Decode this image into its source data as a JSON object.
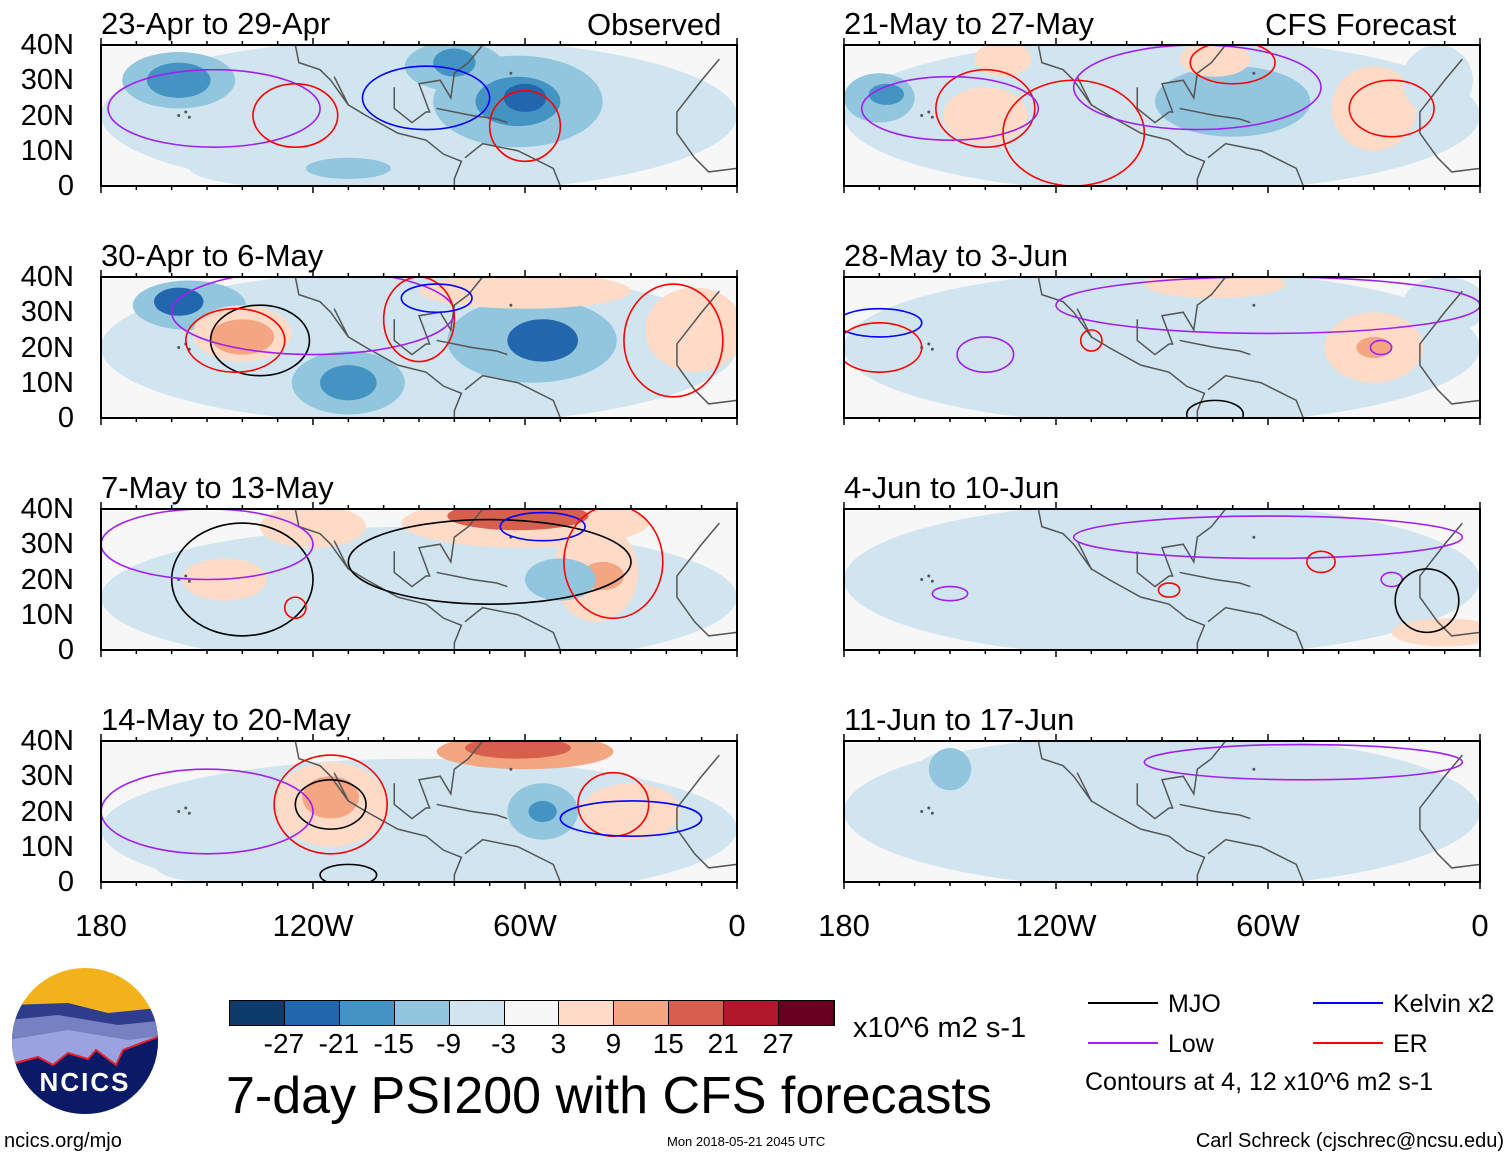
{
  "chart_data": {
    "type": "heatmap",
    "title": "7-day PSI200 with CFS forecasts",
    "column_labels": [
      "Observed",
      "CFS Forecast"
    ],
    "lat_ticks": [
      "40N",
      "30N",
      "20N",
      "10N",
      "0"
    ],
    "lon_ticks": [
      "180",
      "120W",
      "60W",
      "0"
    ],
    "xlim": [
      -180,
      0
    ],
    "ylim": [
      0,
      40
    ],
    "colorbar": {
      "levels": [
        "-27",
        "-21",
        "-15",
        "-9",
        "-3",
        "3",
        "9",
        "15",
        "21",
        "27"
      ],
      "colors": [
        "#0b3a6b",
        "#2266ad",
        "#4393c3",
        "#92c5de",
        "#d1e5f0",
        "#f7f7f7",
        "#fddbc7",
        "#f4a582",
        "#d6604d",
        "#b2182b",
        "#67001f"
      ],
      "units": "x10^6 m2 s-1"
    },
    "contour_legend": [
      {
        "label": "MJO",
        "color": "#000000"
      },
      {
        "label": "Kelvin x2",
        "color": "#0000ff"
      },
      {
        "label": "Low",
        "color": "#a020f0"
      },
      {
        "label": "ER",
        "color": "#ff0000"
      }
    ],
    "contour_note": "Contours at 4, 12 x10^6 m2 s-1",
    "panels": [
      {
        "title": "23-Apr to 29-Apr",
        "col": 0,
        "row": 0,
        "fills": [
          [
            -90,
            20,
            90,
            22,
            -3
          ],
          [
            -158,
            30,
            16,
            8,
            -9
          ],
          [
            -158,
            30,
            9,
            5,
            -15
          ],
          [
            -62,
            24,
            24,
            13,
            -9
          ],
          [
            -62,
            24,
            12,
            7,
            -15
          ],
          [
            -60,
            25,
            6,
            4,
            -21
          ],
          [
            -80,
            34,
            14,
            7,
            -9
          ],
          [
            -80,
            35,
            6,
            4,
            -15
          ],
          [
            -115,
            5,
            40,
            6,
            -6
          ],
          [
            -110,
            5,
            12,
            3,
            -12
          ],
          [
            -140,
            12,
            10,
            4,
            -6
          ]
        ],
        "contours": [
          [
            "Low",
            -148,
            22,
            30,
            11
          ],
          [
            "ER",
            -125,
            20,
            12,
            9
          ],
          [
            "ER",
            -60,
            17,
            10,
            10
          ],
          [
            "Kelvin",
            -88,
            25,
            18,
            9
          ]
        ]
      },
      {
        "title": "30-Apr to 6-May",
        "col": 0,
        "row": 1,
        "fills": [
          [
            -90,
            20,
            90,
            22,
            -3
          ],
          [
            -155,
            32,
            16,
            7,
            -9
          ],
          [
            -158,
            33,
            7,
            4,
            -21
          ],
          [
            -140,
            24,
            14,
            8,
            6
          ],
          [
            -140,
            23,
            9,
            5,
            15
          ],
          [
            -110,
            10,
            16,
            9,
            -9
          ],
          [
            -110,
            10,
            8,
            5,
            -15
          ],
          [
            -58,
            22,
            24,
            12,
            -9
          ],
          [
            -55,
            22,
            10,
            6,
            -21
          ],
          [
            -60,
            36,
            30,
            5,
            6
          ],
          [
            -12,
            25,
            14,
            12,
            6
          ]
        ],
        "contours": [
          [
            "MJO",
            -135,
            22,
            14,
            10
          ],
          [
            "ER",
            -142,
            22,
            14,
            9
          ],
          [
            "Low",
            -120,
            30,
            40,
            12
          ],
          [
            "ER",
            -90,
            28,
            10,
            12
          ],
          [
            "Kelvin",
            -85,
            34,
            10,
            4
          ],
          [
            "ER",
            -18,
            22,
            14,
            16
          ]
        ]
      },
      {
        "title": "7-May to 13-May",
        "col": 0,
        "row": 2,
        "fills": [
          [
            -90,
            15,
            90,
            20,
            -3
          ],
          [
            -60,
            36,
            35,
            7,
            9
          ],
          [
            -62,
            38,
            20,
            4,
            21
          ],
          [
            -40,
            22,
            12,
            14,
            9
          ],
          [
            -38,
            21,
            6,
            4,
            15
          ],
          [
            -120,
            35,
            15,
            6,
            6
          ],
          [
            -145,
            20,
            12,
            6,
            6
          ],
          [
            -50,
            20,
            10,
            6,
            -9
          ]
        ],
        "contours": [
          [
            "MJO",
            -140,
            20,
            20,
            16
          ],
          [
            "MJO",
            -70,
            25,
            40,
            12
          ],
          [
            "Kelvin",
            -55,
            35,
            12,
            4
          ],
          [
            "ER",
            -35,
            25,
            14,
            16
          ],
          [
            "ER",
            -125,
            12,
            3,
            3
          ],
          [
            "Low",
            -150,
            30,
            30,
            10
          ]
        ]
      },
      {
        "title": "14-May to 20-May",
        "col": 0,
        "row": 3,
        "fills": [
          [
            -90,
            15,
            90,
            20,
            -3
          ],
          [
            -60,
            37,
            25,
            5,
            15
          ],
          [
            -62,
            38,
            15,
            3,
            21
          ],
          [
            -115,
            22,
            16,
            12,
            9
          ],
          [
            -115,
            24,
            8,
            6,
            15
          ],
          [
            -55,
            20,
            10,
            8,
            -9
          ],
          [
            -55,
            20,
            4,
            3,
            -15
          ],
          [
            -30,
            20,
            14,
            8,
            9
          ],
          [
            -150,
            5,
            15,
            5,
            -6
          ]
        ],
        "contours": [
          [
            "ER",
            -115,
            22,
            16,
            14
          ],
          [
            "MJO",
            -115,
            22,
            10,
            7
          ],
          [
            "Low",
            -150,
            20,
            30,
            12
          ],
          [
            "ER",
            -35,
            22,
            10,
            9
          ],
          [
            "Kelvin",
            -30,
            18,
            20,
            5
          ],
          [
            "MJO",
            -110,
            2,
            8,
            3
          ]
        ]
      },
      {
        "title": "21-May to 27-May",
        "col": 1,
        "row": 0,
        "fills": [
          [
            -90,
            20,
            90,
            22,
            -3
          ],
          [
            -170,
            25,
            10,
            7,
            -9
          ],
          [
            -168,
            26,
            5,
            3,
            -15
          ],
          [
            -70,
            24,
            22,
            10,
            -9
          ],
          [
            -140,
            20,
            12,
            8,
            6
          ],
          [
            -135,
            36,
            8,
            5,
            6
          ],
          [
            -30,
            22,
            12,
            12,
            9
          ],
          [
            -75,
            36,
            10,
            5,
            9
          ],
          [
            -12,
            30,
            10,
            10,
            -6
          ]
        ],
        "contours": [
          [
            "ER",
            -140,
            22,
            14,
            11
          ],
          [
            "Low",
            -150,
            22,
            25,
            9
          ],
          [
            "ER",
            -115,
            15,
            20,
            15
          ],
          [
            "Low",
            -80,
            28,
            35,
            12
          ],
          [
            "ER",
            -25,
            22,
            12,
            8
          ],
          [
            "ER",
            -70,
            35,
            12,
            6
          ]
        ]
      },
      {
        "title": "28-May to 3-Jun",
        "col": 1,
        "row": 1,
        "fills": [
          [
            -90,
            20,
            90,
            22,
            -3
          ],
          [
            -30,
            20,
            14,
            10,
            6
          ],
          [
            -30,
            20,
            5,
            3,
            15
          ],
          [
            -60,
            30,
            10,
            6,
            -6
          ],
          [
            -10,
            32,
            12,
            8,
            -6
          ],
          [
            -75,
            38,
            20,
            4,
            6
          ]
        ],
        "contours": [
          [
            "Kelvin",
            -170,
            27,
            12,
            4
          ],
          [
            "ER",
            -170,
            20,
            12,
            7
          ],
          [
            "Low",
            -140,
            18,
            8,
            5
          ],
          [
            "ER",
            -110,
            22,
            3,
            3
          ],
          [
            "Low",
            -60,
            32,
            60,
            8
          ],
          [
            "Low",
            -28,
            20,
            3,
            2
          ],
          [
            "MJO",
            -75,
            1,
            8,
            4
          ]
        ]
      },
      {
        "title": "4-Jun to 10-Jun",
        "col": 1,
        "row": 2,
        "fills": [
          [
            -90,
            20,
            90,
            22,
            -3
          ],
          [
            -130,
            22,
            16,
            12,
            -6
          ],
          [
            -60,
            32,
            25,
            6,
            -3
          ],
          [
            -10,
            5,
            15,
            4,
            6
          ]
        ],
        "contours": [
          [
            "Low",
            -60,
            32,
            55,
            6
          ],
          [
            "ER",
            -45,
            25,
            4,
            3
          ],
          [
            "Low",
            -25,
            20,
            3,
            2
          ],
          [
            "MJO",
            -15,
            14,
            9,
            9
          ],
          [
            "Low",
            -150,
            16,
            5,
            2
          ],
          [
            "ER",
            -88,
            17,
            3,
            2
          ]
        ]
      },
      {
        "title": "11-Jun to 17-Jun",
        "col": 1,
        "row": 3,
        "fills": [
          [
            -90,
            20,
            90,
            22,
            -3
          ],
          [
            -75,
            22,
            30,
            9,
            -6
          ],
          [
            -150,
            27,
            12,
            10,
            -6
          ],
          [
            -150,
            32,
            6,
            6,
            -9
          ]
        ],
        "contours": [
          [
            "Low",
            -50,
            34,
            45,
            5
          ]
        ]
      }
    ]
  },
  "footer": {
    "logo_text": "NCICS",
    "url": "ncics.org/mjo",
    "timestamp": "Mon 2018-05-21 2045 UTC",
    "author": "Carl Schreck (cjschrec@ncsu.edu)"
  }
}
